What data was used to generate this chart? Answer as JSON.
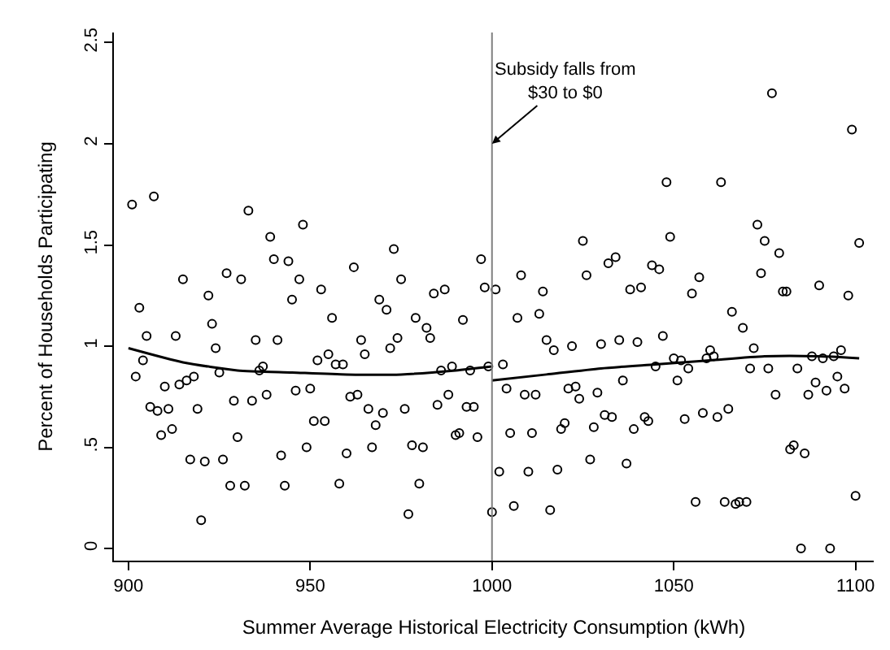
{
  "chart_data": {
    "type": "scatter",
    "xlabel": "Summer Average Historical Electricity Consumption (kWh)",
    "ylabel": "Percent of Households Participating",
    "xlim": [
      896,
      1105
    ],
    "xticks": [
      900,
      950,
      1000,
      1050,
      1100
    ],
    "ylim": [
      -0.06,
      2.55
    ],
    "yticks": [
      0,
      {
        "value": 0.5,
        "label": ".5"
      },
      1,
      1.5,
      2,
      2.5
    ],
    "ref_lines": [
      {
        "axis": "x",
        "value": 1000,
        "color": "#808080"
      }
    ],
    "annotations": [
      {
        "text": "Subsidy falls from\n$30 to $0",
        "x": 1000,
        "y": 2
      }
    ],
    "series": [
      {
        "color": "#000000",
        "marker": "circle",
        "x": [
          901,
          907,
          933,
          939,
          948,
          940,
          944,
          962,
          915,
          927,
          931,
          947,
          922,
          945,
          953,
          903,
          956,
          923,
          905,
          913,
          935,
          941,
          964,
          924,
          965,
          955,
          952,
          904,
          957,
          959,
          937,
          936,
          925,
          902,
          918,
          916,
          914,
          910,
          946,
          950,
          938,
          929,
          934,
          963,
          961,
          906,
          908,
          911,
          919,
          966,
          951,
          954,
          912,
          909,
          930,
          968,
          949,
          967,
          942,
          960,
          917,
          921,
          926,
          928,
          932,
          943,
          958,
          920,
          973,
          997,
          975,
          969,
          971,
          984,
          987,
          998,
          1001,
          979,
          992,
          982,
          983,
          974,
          972,
          986,
          989,
          994,
          999,
          1003,
          970,
          976,
          985,
          988,
          993,
          995,
          990,
          991,
          996,
          978,
          981,
          980,
          977,
          1000,
          1025,
          1032,
          1034,
          1008,
          1026,
          1014,
          1038,
          1007,
          1013,
          1015,
          1017,
          1022,
          1030,
          1035,
          1036,
          1004,
          1009,
          1012,
          1021,
          1023,
          1024,
          1029,
          1031,
          1033,
          1028,
          1019,
          1020,
          1005,
          1011,
          1027,
          1037,
          1002,
          1010,
          1018,
          1006,
          1016,
          1099,
          1048,
          1063,
          1049,
          1073,
          1075,
          1079,
          1101,
          1044,
          1046,
          1041,
          1057,
          1055,
          1074,
          1080,
          1081,
          1090,
          1098,
          1066,
          1069,
          1040,
          1047,
          1072,
          1060,
          1061,
          1059,
          1050,
          1052,
          1045,
          1054,
          1071,
          1076,
          1084,
          1088,
          1091,
          1094,
          1096,
          1051,
          1078,
          1087,
          1089,
          1092,
          1095,
          1097,
          1039,
          1042,
          1043,
          1053,
          1058,
          1062,
          1065,
          1082,
          1083,
          1086,
          1056,
          1064,
          1067,
          1068,
          1070,
          1100,
          1085,
          1093,
          1077
        ],
        "values": [
          1.7,
          1.74,
          1.67,
          1.54,
          1.6,
          1.43,
          1.42,
          1.39,
          1.33,
          1.36,
          1.33,
          1.33,
          1.25,
          1.23,
          1.28,
          1.19,
          1.14,
          1.11,
          1.05,
          1.05,
          1.03,
          1.03,
          1.03,
          0.99,
          0.96,
          0.96,
          0.93,
          0.93,
          0.91,
          0.91,
          0.9,
          0.88,
          0.87,
          0.85,
          0.85,
          0.83,
          0.81,
          0.8,
          0.78,
          0.79,
          0.76,
          0.73,
          0.73,
          0.76,
          0.75,
          0.7,
          0.68,
          0.69,
          0.69,
          0.69,
          0.63,
          0.63,
          0.59,
          0.56,
          0.55,
          0.61,
          0.5,
          0.5,
          0.46,
          0.47,
          0.44,
          0.43,
          0.44,
          0.31,
          0.31,
          0.31,
          0.32,
          0.14,
          1.48,
          1.43,
          1.33,
          1.23,
          1.18,
          1.26,
          1.28,
          1.29,
          1.28,
          1.14,
          1.13,
          1.09,
          1.04,
          1.04,
          0.99,
          0.88,
          0.9,
          0.88,
          0.9,
          0.91,
          0.67,
          0.69,
          0.71,
          0.76,
          0.7,
          0.7,
          0.56,
          0.57,
          0.55,
          0.51,
          0.5,
          0.32,
          0.17,
          0.18,
          1.52,
          1.41,
          1.44,
          1.35,
          1.35,
          1.27,
          1.28,
          1.14,
          1.16,
          1.03,
          0.98,
          1.0,
          1.01,
          1.03,
          0.83,
          0.79,
          0.76,
          0.76,
          0.79,
          0.8,
          0.74,
          0.77,
          0.66,
          0.65,
          0.6,
          0.59,
          0.62,
          0.57,
          0.57,
          0.44,
          0.42,
          0.38,
          0.38,
          0.39,
          0.21,
          0.19,
          2.07,
          1.81,
          1.81,
          1.54,
          1.6,
          1.52,
          1.46,
          1.51,
          1.4,
          1.38,
          1.29,
          1.34,
          1.26,
          1.36,
          1.27,
          1.27,
          1.3,
          1.25,
          1.17,
          1.09,
          1.02,
          1.05,
          0.99,
          0.98,
          0.95,
          0.94,
          0.94,
          0.93,
          0.9,
          0.89,
          0.89,
          0.89,
          0.89,
          0.95,
          0.94,
          0.95,
          0.98,
          0.83,
          0.76,
          0.76,
          0.82,
          0.78,
          0.85,
          0.79,
          0.59,
          0.65,
          0.63,
          0.64,
          0.67,
          0.65,
          0.69,
          0.49,
          0.51,
          0.47,
          0.23,
          0.23,
          0.22,
          0.23,
          0.23,
          0.26,
          0.0,
          0.0,
          2.25
        ]
      },
      {
        "type": "line",
        "color": "#000000",
        "marker": "none",
        "line_style": "solid",
        "x": [
          900,
          915,
          930,
          945,
          960,
          975,
          990,
          1000
        ],
        "values": [
          0.99,
          0.92,
          0.88,
          0.87,
          0.86,
          0.86,
          0.88,
          0.9
        ]
      },
      {
        "type": "line",
        "color": "#000000",
        "marker": "none",
        "line_style": "solid",
        "x": [
          1000,
          1015,
          1030,
          1045,
          1060,
          1075,
          1090,
          1101
        ],
        "values": [
          0.83,
          0.86,
          0.89,
          0.91,
          0.93,
          0.95,
          0.95,
          0.94
        ]
      }
    ]
  }
}
